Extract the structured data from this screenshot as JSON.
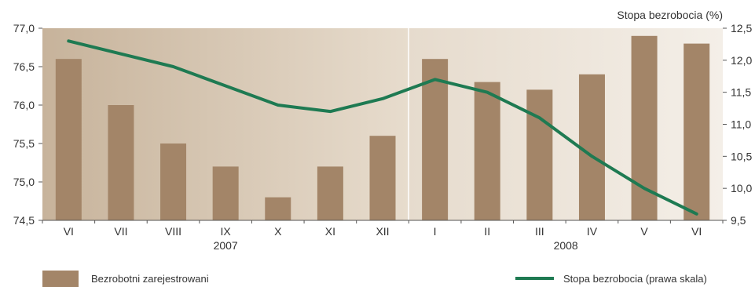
{
  "chart_data": {
    "type": "bar",
    "categories": [
      "VI",
      "VII",
      "VIII",
      "IX",
      "X",
      "XI",
      "XII",
      "I",
      "II",
      "III",
      "IV",
      "V",
      "VI"
    ],
    "year_labels": [
      "2007",
      "2008"
    ],
    "series": [
      {
        "name": "Bezrobotni zarejestrowani",
        "type": "bar",
        "axis": "left",
        "values": [
          76.6,
          76.0,
          75.5,
          75.2,
          74.8,
          75.2,
          75.6,
          76.6,
          76.3,
          76.2,
          76.4,
          76.9,
          76.8
        ]
      },
      {
        "name": "Stopa bezrobocia (prawa skala)",
        "type": "line",
        "axis": "right",
        "values": [
          12.3,
          12.1,
          11.9,
          11.6,
          11.3,
          11.2,
          11.4,
          11.7,
          11.5,
          11.1,
          10.5,
          10.0,
          9.6
        ]
      }
    ],
    "y_left": {
      "ylim": [
        74.5,
        77.0
      ],
      "ticks": [
        "74,5",
        "75,0",
        "75,5",
        "76,0",
        "76,5",
        "77,0"
      ]
    },
    "y_right": {
      "label": "Stopa bezrobocia (%)",
      "ylim": [
        9.5,
        12.5
      ],
      "ticks": [
        "9,5",
        "10,0",
        "10,5",
        "11,0",
        "11,5",
        "12,0",
        "12,5"
      ]
    },
    "legend": {
      "bar_label": "Bezrobotni zarejestrowani",
      "line_label": "Stopa bezrobocia (prawa skala)",
      "placement": "bottom"
    },
    "grid": false,
    "colors": {
      "bar": "#a38568",
      "line": "#1e7a52",
      "bg_2007_left": "#c7b39b",
      "bg_2007_right": "#e7dccd",
      "bg_2008_left": "#e6dbcd",
      "bg_2008_right": "#f4efe8",
      "divider": "#ffffff",
      "axis": "#555555"
    }
  }
}
